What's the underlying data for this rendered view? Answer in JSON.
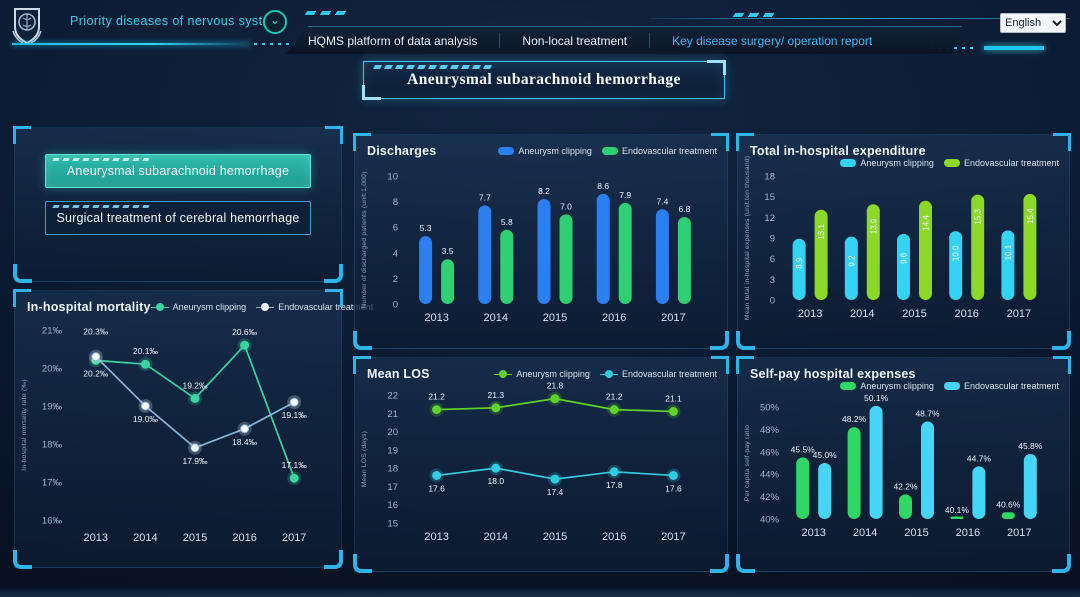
{
  "header": {
    "brand": "Priority diseases of nervous system",
    "tabs": [
      {
        "label": "HQMS platform of data analysis",
        "active": false
      },
      {
        "label": "Non-local treatment",
        "active": false
      },
      {
        "label": "Key disease surgery/ operation report",
        "active": true
      }
    ],
    "language_selector": {
      "value": "English"
    }
  },
  "page_title": "Aneurysmal subarachnoid hemorrhage",
  "selector_panel": {
    "buttons": [
      {
        "label": "Aneurysmal subarachnoid hemorrhage",
        "selected": true
      },
      {
        "label": "Surgical treatment of cerebral hemorrhage",
        "selected": false
      }
    ]
  },
  "colors": {
    "accent_cyan": "#35cdee",
    "tab_active": "#3fb9f5",
    "selected_button": "#25b3a2",
    "bracket": "#2db4e8"
  },
  "chart_data": [
    {
      "id": "mortality",
      "type": "line",
      "title": "In-hospital mortality",
      "ylabel": "In-hospital mortality rate (‰)",
      "categories": [
        "2013",
        "2014",
        "2015",
        "2016",
        "2017"
      ],
      "ylim": [
        16,
        21
      ],
      "yticks": [
        "16‰",
        "17‰",
        "18‰",
        "19‰",
        "20‰",
        "21‰"
      ],
      "label_suffix": "‰",
      "grid": false,
      "legend_position": "top-right",
      "series": [
        {
          "name": "Aneurysm clipping",
          "color": "#3bd4a0",
          "marker_fill": "#3bd4a0",
          "values": [
            20.2,
            20.1,
            19.2,
            20.6,
            17.1
          ],
          "label_side": [
            "below",
            "above",
            "above",
            "above",
            "above"
          ]
        },
        {
          "name": "Endovascular treatment",
          "color": "#8ab4d6",
          "marker_fill": "#f4f9fd",
          "values": [
            20.3,
            19.0,
            17.9,
            18.4,
            19.1
          ],
          "label_side": [
            "above2",
            "below",
            "below",
            "below",
            "below"
          ]
        }
      ]
    },
    {
      "id": "discharges",
      "type": "bar",
      "title": "Discharges",
      "ylabel": "Number of discharged patients (unit:1,000)",
      "categories": [
        "2013",
        "2014",
        "2015",
        "2016",
        "2017"
      ],
      "ylim": [
        0,
        10
      ],
      "yticks": [
        "0",
        "2",
        "4",
        "6",
        "8",
        "10"
      ],
      "bar_label_mode": "above",
      "label_suffix": "",
      "grid": false,
      "legend_position": "top-right",
      "series": [
        {
          "name": "Aneurysm clipping",
          "color": "#2b7ff0",
          "values": [
            5.3,
            7.7,
            8.2,
            8.6,
            7.4
          ]
        },
        {
          "name": "Endovascular treatment",
          "color": "#30cf73",
          "values": [
            3.5,
            5.8,
            7.0,
            7.9,
            6.8
          ]
        }
      ]
    },
    {
      "id": "meanlos",
      "type": "line",
      "title": "Mean LOS",
      "ylabel": "Mean LOS (days)",
      "categories": [
        "2013",
        "2014",
        "2015",
        "2016",
        "2017"
      ],
      "ylim": [
        15,
        22
      ],
      "yticks": [
        "15",
        "16",
        "17",
        "18",
        "19",
        "20",
        "21",
        "22"
      ],
      "label_suffix": "",
      "grid": false,
      "legend_position": "top-right",
      "series": [
        {
          "name": "Aneurysm clipping",
          "color": "#5fd32a",
          "marker_fill": "#5fd32a",
          "values": [
            21.2,
            21.3,
            21.8,
            21.2,
            21.1
          ],
          "label_side": [
            "above",
            "above",
            "above",
            "above",
            "above"
          ]
        },
        {
          "name": "Endovascular treatment",
          "color": "#30ccdf",
          "marker_fill": "#30ccdf",
          "values": [
            17.6,
            18.0,
            17.4,
            17.8,
            17.6
          ],
          "label_side": [
            "below",
            "below",
            "below",
            "below",
            "below"
          ]
        }
      ]
    },
    {
      "id": "expenditure",
      "type": "bar",
      "title": "Total in-hospital expenditure",
      "ylabel": "Mean total in-hospital expenses (unit:ten thousand)",
      "categories": [
        "2013",
        "2014",
        "2015",
        "2016",
        "2017"
      ],
      "ylim": [
        0,
        18
      ],
      "yticks": [
        "0",
        "3",
        "6",
        "9",
        "12",
        "15",
        "18"
      ],
      "bar_label_mode": "rotated",
      "label_suffix": "",
      "grid": false,
      "legend_position": "top-right",
      "series": [
        {
          "name": "Aneurysm clipping",
          "color": "#35d3f2",
          "values": [
            8.9,
            9.2,
            9.6,
            10.0,
            10.1
          ]
        },
        {
          "name": "Endovascular treatment",
          "color": "#8cd829",
          "values": [
            13.1,
            13.9,
            14.4,
            15.3,
            15.4
          ]
        }
      ]
    },
    {
      "id": "selfpay",
      "type": "bar",
      "title": "Self-pay hospital expenses",
      "ylabel": "Per capita self-pay ratio",
      "categories": [
        "2013",
        "2014",
        "2015",
        "2016",
        "2017"
      ],
      "ylim": [
        40,
        50
      ],
      "yticks": [
        "40%",
        "42%",
        "44%",
        "46%",
        "48%",
        "50%"
      ],
      "bar_label_mode": "above",
      "label_suffix": "%",
      "grid": false,
      "legend_position": "top-right",
      "series": [
        {
          "name": "Aneurysm clipping",
          "color": "#2ed863",
          "values": [
            45.5,
            48.2,
            42.2,
            40.1,
            40.6
          ]
        },
        {
          "name": "Endovascular treatment",
          "color": "#44d6f4",
          "values": [
            45.0,
            50.1,
            48.7,
            44.7,
            45.8
          ]
        }
      ]
    }
  ]
}
